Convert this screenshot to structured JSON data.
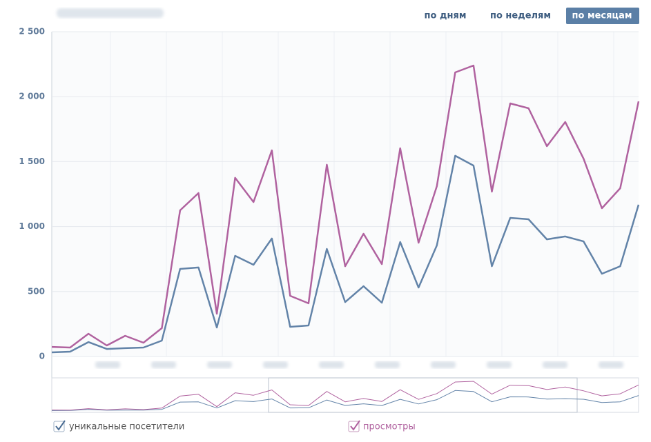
{
  "ui": {
    "buttons": [
      "по дням",
      "по неделям",
      "по месяцам"
    ],
    "active_button": 2
  },
  "chart_data": {
    "type": "line",
    "categories": [
      null,
      null,
      null,
      null,
      null,
      null,
      null,
      null,
      null,
      null,
      null,
      null,
      null,
      null,
      null,
      null,
      null,
      null,
      null,
      null,
      null,
      null,
      null,
      null,
      null,
      null,
      null,
      null,
      null,
      null,
      null,
      null,
      null
    ],
    "series": [
      {
        "name": "уникальные посетители",
        "color": "#6283a8",
        "values": [
          32,
          37,
          111,
          58,
          64,
          69,
          122,
          674,
          685,
          223,
          775,
          706,
          908,
          228,
          239,
          828,
          419,
          541,
          414,
          881,
          531,
          855,
          1545,
          1470,
          695,
          1067,
          1056,
          902,
          924,
          886,
          637,
          695,
          1168
        ]
      },
      {
        "name": "просмотры",
        "color": "#b0629f",
        "values": [
          74,
          69,
          175,
          85,
          159,
          106,
          218,
          1125,
          1258,
          329,
          1375,
          1189,
          1587,
          467,
          409,
          1476,
          695,
          945,
          711,
          1603,
          876,
          1311,
          2187,
          2240,
          1269,
          1948,
          1911,
          1619,
          1805,
          1523,
          1141,
          1295,
          1964
        ]
      }
    ],
    "ylim": [
      0,
      2500
    ],
    "yticks": [
      0,
      500,
      {
        "value": 1000,
        "label": "1 000"
      },
      {
        "value": 1500,
        "label": "1 500"
      },
      {
        "value": 2000,
        "label": "2 000"
      },
      {
        "value": 2500,
        "label": "2 500"
      }
    ],
    "grid": true
  }
}
